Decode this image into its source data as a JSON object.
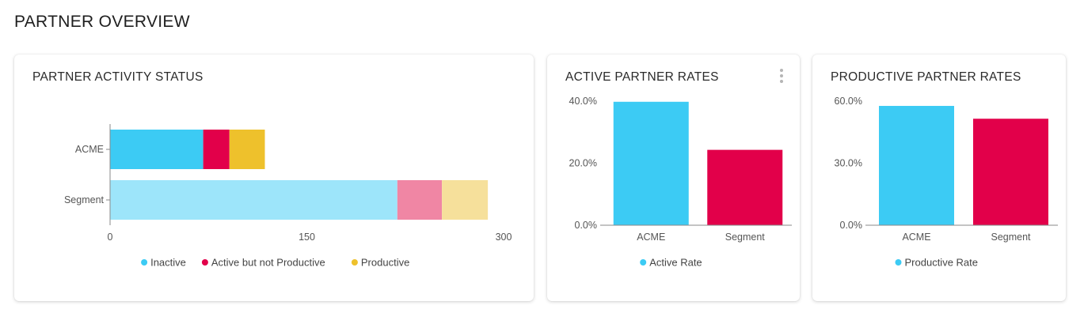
{
  "page_title": "PARTNER OVERVIEW",
  "colors": {
    "inactive": "#3ccbf4",
    "active_not_productive": "#e2004a",
    "productive": "#eec12c",
    "inactive_light": "#9de5fa",
    "active_not_productive_light": "#f086a4",
    "productive_light": "#f6e09b",
    "axis": "#8a8a8a"
  },
  "cards": {
    "activity": {
      "title": "PARTNER ACTIVITY STATUS"
    },
    "active_rates": {
      "title": "ACTIVE PARTNER RATES",
      "menu_icon": "kebab-menu-icon"
    },
    "productive_rates": {
      "title": "PRODUCTIVE PARTNER RATES"
    }
  },
  "chart_data": [
    {
      "type": "bar",
      "orientation": "horizontal",
      "stacked": true,
      "title": "PARTNER ACTIVITY STATUS",
      "categories": [
        "ACME",
        "Segment"
      ],
      "series": [
        {
          "name": "Inactive",
          "values": [
            71,
            219
          ]
        },
        {
          "name": "Active but not Productive",
          "values": [
            20,
            34
          ]
        },
        {
          "name": "Productive",
          "values": [
            27,
            35
          ]
        }
      ],
      "xlim": [
        0,
        300
      ],
      "xticks": [
        "0",
        "150",
        "300"
      ],
      "legend": "bottom",
      "grid": false
    },
    {
      "type": "bar",
      "title": "ACTIVE PARTNER RATES",
      "categories": [
        "ACME",
        "Segment"
      ],
      "series": [
        {
          "name": "Active Rate",
          "values": [
            39.8,
            24.3
          ]
        }
      ],
      "ylim": [
        0,
        40
      ],
      "yticks": [
        "0.0%",
        "20.0%",
        "40.0%"
      ],
      "legend": "bottom",
      "grid": false
    },
    {
      "type": "bar",
      "title": "PRODUCTIVE PARTNER RATES",
      "categories": [
        "ACME",
        "Segment"
      ],
      "series": [
        {
          "name": "Productive Rate",
          "values": [
            57.7,
            51.5
          ]
        }
      ],
      "ylim": [
        0,
        60
      ],
      "yticks": [
        "0.0%",
        "30.0%",
        "60.0%"
      ],
      "legend": "bottom",
      "grid": false
    }
  ]
}
